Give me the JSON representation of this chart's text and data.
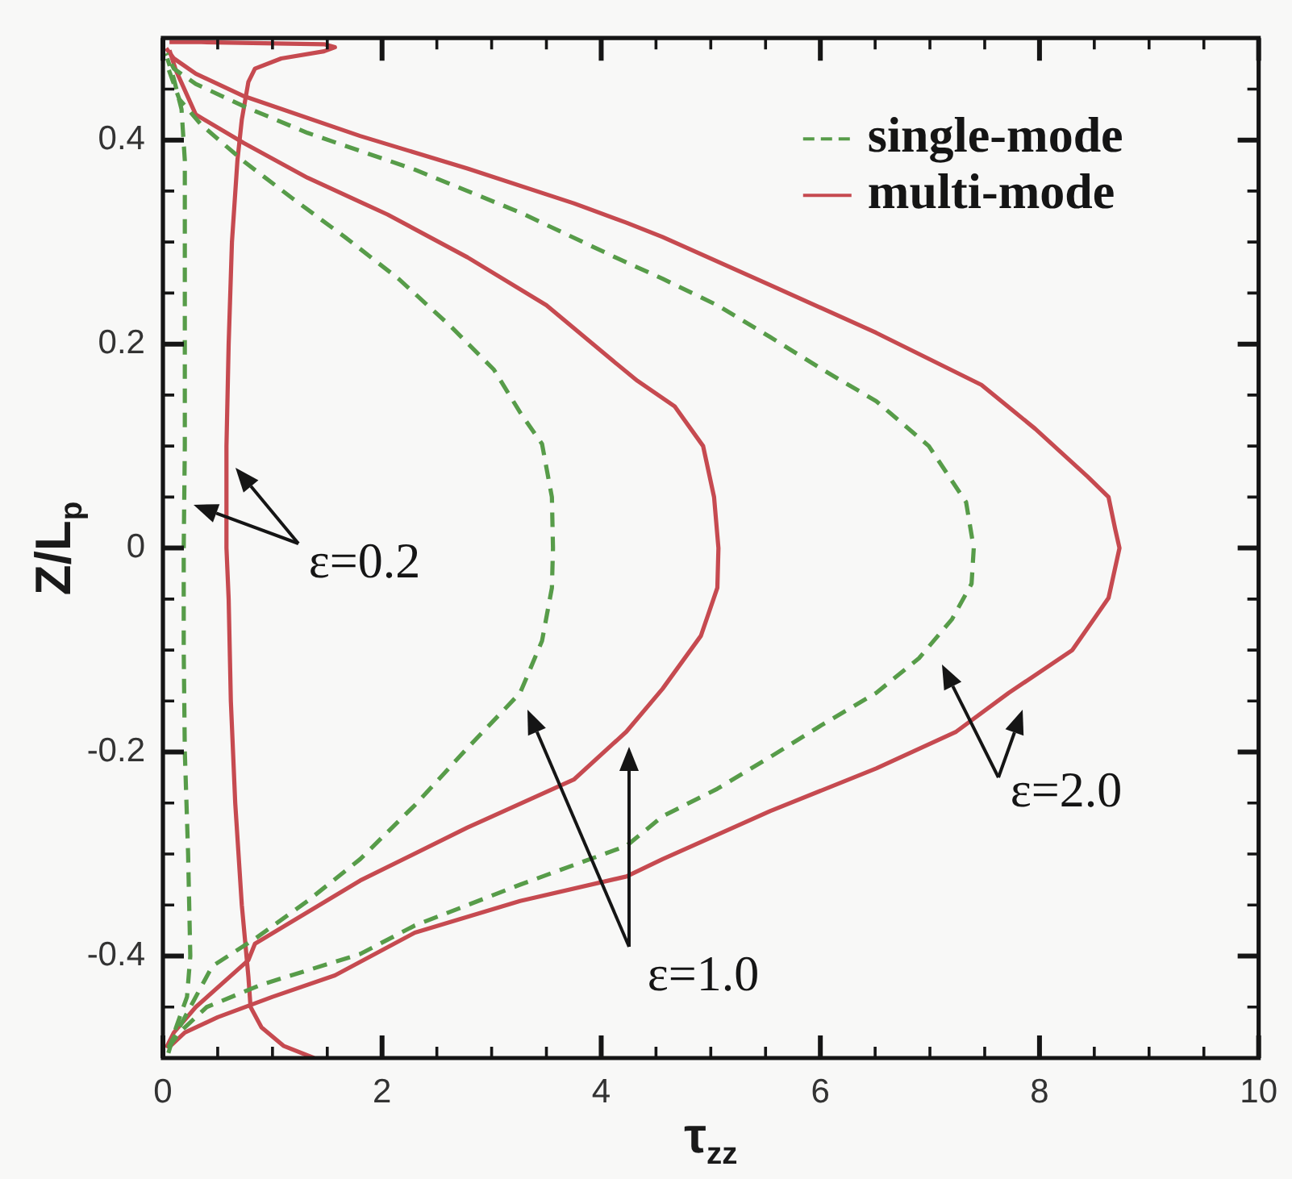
{
  "chart_data": {
    "type": "line",
    "xlabel": "τ$_{zz}$",
    "ylabel": "Z/L$_{p}$",
    "xlim": [
      0,
      10
    ],
    "ylim": [
      -0.5,
      0.5
    ],
    "xticks": [
      0,
      {
        "value": 0.5,
        "label": null
      },
      {
        "value": 1,
        "label": null
      },
      {
        "value": 1.5,
        "label": null
      },
      2,
      {
        "value": 2.5,
        "label": null
      },
      {
        "value": 3,
        "label": null
      },
      {
        "value": 3.5,
        "label": null
      },
      4,
      {
        "value": 4.5,
        "label": null
      },
      {
        "value": 5,
        "label": null
      },
      {
        "value": 5.5,
        "label": null
      },
      6,
      {
        "value": 6.5,
        "label": null
      },
      {
        "value": 7,
        "label": null
      },
      {
        "value": 7.5,
        "label": null
      },
      8,
      {
        "value": 8.5,
        "label": null
      },
      {
        "value": 9,
        "label": null
      },
      {
        "value": 9.5,
        "label": null
      },
      10
    ],
    "yticks": [
      {
        "value": -0.45,
        "label": null
      },
      -0.4,
      {
        "value": -0.35,
        "label": null
      },
      {
        "value": -0.3,
        "label": null
      },
      {
        "value": -0.25,
        "label": null
      },
      -0.2,
      {
        "value": -0.15,
        "label": null
      },
      {
        "value": -0.1,
        "label": null
      },
      {
        "value": -0.05,
        "label": null
      },
      0,
      {
        "value": 0.05,
        "label": null
      },
      {
        "value": 0.1,
        "label": null
      },
      {
        "value": 0.15,
        "label": null
      },
      0.2,
      {
        "value": 0.25,
        "label": null
      },
      {
        "value": 0.3,
        "label": null
      },
      {
        "value": 0.35,
        "label": null
      },
      0.4,
      {
        "value": 0.45,
        "label": null
      }
    ],
    "legend": "top right",
    "marker": "none",
    "annotations": [
      "ε=0.2",
      "ε=1.0",
      "ε=2.0"
    ],
    "series": [
      {
        "name": "single-mode",
        "color": "#579c49",
        "line_style": "dashed",
        "x": [
          0.05,
          0.12,
          0.22,
          0.25,
          0.23,
          0.2,
          0.19,
          0.19,
          0.2,
          0.2,
          0.2,
          0.2,
          0.17,
          0.1,
          0.04
        ],
        "values": [
          -0.495,
          -0.47,
          -0.44,
          -0.4,
          -0.3,
          -0.2,
          -0.1,
          0.0,
          0.1,
          0.2,
          0.3,
          0.38,
          0.43,
          0.46,
          0.48
        ]
      },
      {
        "color": "#579c49",
        "line_style": "dashed",
        "x": [
          0.05,
          0.2,
          0.45,
          0.84,
          1.32,
          1.8,
          2.3,
          2.78,
          3.26,
          3.46,
          3.55,
          3.56,
          3.55,
          3.46,
          3.26,
          3.02,
          2.63,
          2.15,
          1.66,
          1.18,
          0.74,
          0.35,
          0.15,
          0.05
        ],
        "values": [
          -0.49,
          -0.46,
          -0.41,
          -0.383,
          -0.346,
          -0.305,
          -0.252,
          -0.196,
          -0.142,
          -0.091,
          -0.039,
          0.0,
          0.05,
          0.102,
          0.133,
          0.175,
          0.217,
          0.264,
          0.305,
          0.343,
          0.379,
          0.415,
          0.44,
          0.47
        ]
      },
      {
        "color": "#579c49",
        "line_style": "dashed",
        "x": [
          0.05,
          0.15,
          0.4,
          0.9,
          1.8,
          2.3,
          3.26,
          4.23,
          4.56,
          5.06,
          5.54,
          6.02,
          6.51,
          6.9,
          7.2,
          7.38,
          7.4,
          7.33,
          6.99,
          6.51,
          6.02,
          5.54,
          5.06,
          4.56,
          4.15,
          3.26,
          2.3,
          1.32,
          0.74,
          0.3,
          0.1,
          0.03
        ],
        "values": [
          -0.49,
          -0.475,
          -0.45,
          -0.428,
          -0.398,
          -0.37,
          -0.33,
          -0.292,
          -0.263,
          -0.236,
          -0.205,
          -0.173,
          -0.142,
          -0.108,
          -0.07,
          -0.035,
          0.0,
          0.045,
          0.1,
          0.144,
          0.175,
          0.207,
          0.238,
          0.264,
          0.284,
          0.329,
          0.371,
          0.407,
          0.433,
          0.455,
          0.47,
          0.485
        ]
      },
      {
        "name": "multi-mode",
        "color": "#c64a50",
        "line_style": "solid",
        "x": [
          1.38,
          1.1,
          0.9,
          0.8,
          0.78,
          0.72,
          0.66,
          0.62,
          0.6,
          0.58,
          0.58,
          0.6,
          0.63,
          0.68,
          0.72,
          0.78,
          0.84,
          1.08,
          1.47,
          1.57,
          1.47,
          0.35,
          0.06
        ],
        "values": [
          -0.5,
          -0.488,
          -0.47,
          -0.45,
          -0.42,
          -0.35,
          -0.25,
          -0.15,
          -0.05,
          0.0,
          0.1,
          0.2,
          0.3,
          0.38,
          0.42,
          0.457,
          0.47,
          0.48,
          0.487,
          0.491,
          0.494,
          0.496,
          0.496
        ]
      },
      {
        "color": "#c64a50",
        "line_style": "solid",
        "x": [
          0.03,
          0.1,
          0.3,
          0.78,
          0.84,
          1.8,
          2.78,
          3.75,
          4.23,
          4.56,
          4.91,
          5.06,
          5.07,
          5.03,
          4.93,
          4.67,
          4.33,
          4.08,
          3.5,
          2.78,
          2.05,
          1.32,
          0.74,
          0.3,
          0.12,
          0.06
        ],
        "values": [
          -0.49,
          -0.475,
          -0.45,
          -0.404,
          -0.388,
          -0.326,
          -0.274,
          -0.227,
          -0.18,
          -0.138,
          -0.086,
          -0.039,
          0.0,
          0.05,
          0.1,
          0.139,
          0.164,
          0.186,
          0.238,
          0.285,
          0.327,
          0.363,
          0.397,
          0.425,
          0.468,
          0.488
        ]
      },
      {
        "color": "#c64a50",
        "line_style": "solid",
        "x": [
          0.05,
          0.2,
          0.5,
          1.0,
          1.57,
          2.3,
          3.26,
          4.23,
          4.56,
          5.54,
          6.51,
          7.24,
          7.72,
          8.3,
          8.63,
          8.73,
          8.69,
          8.63,
          8.44,
          7.96,
          7.47,
          6.51,
          5.54,
          4.56,
          4.23,
          3.75,
          2.78,
          1.8,
          0.74,
          0.3,
          0.1,
          0.03
        ],
        "values": [
          -0.49,
          -0.475,
          -0.46,
          -0.44,
          -0.419,
          -0.377,
          -0.346,
          -0.322,
          -0.305,
          -0.258,
          -0.216,
          -0.18,
          -0.142,
          -0.1,
          -0.049,
          0.0,
          0.019,
          0.05,
          0.07,
          0.117,
          0.16,
          0.211,
          0.258,
          0.305,
          0.319,
          0.338,
          0.372,
          0.404,
          0.443,
          0.465,
          0.48,
          0.49
        ]
      }
    ]
  }
}
